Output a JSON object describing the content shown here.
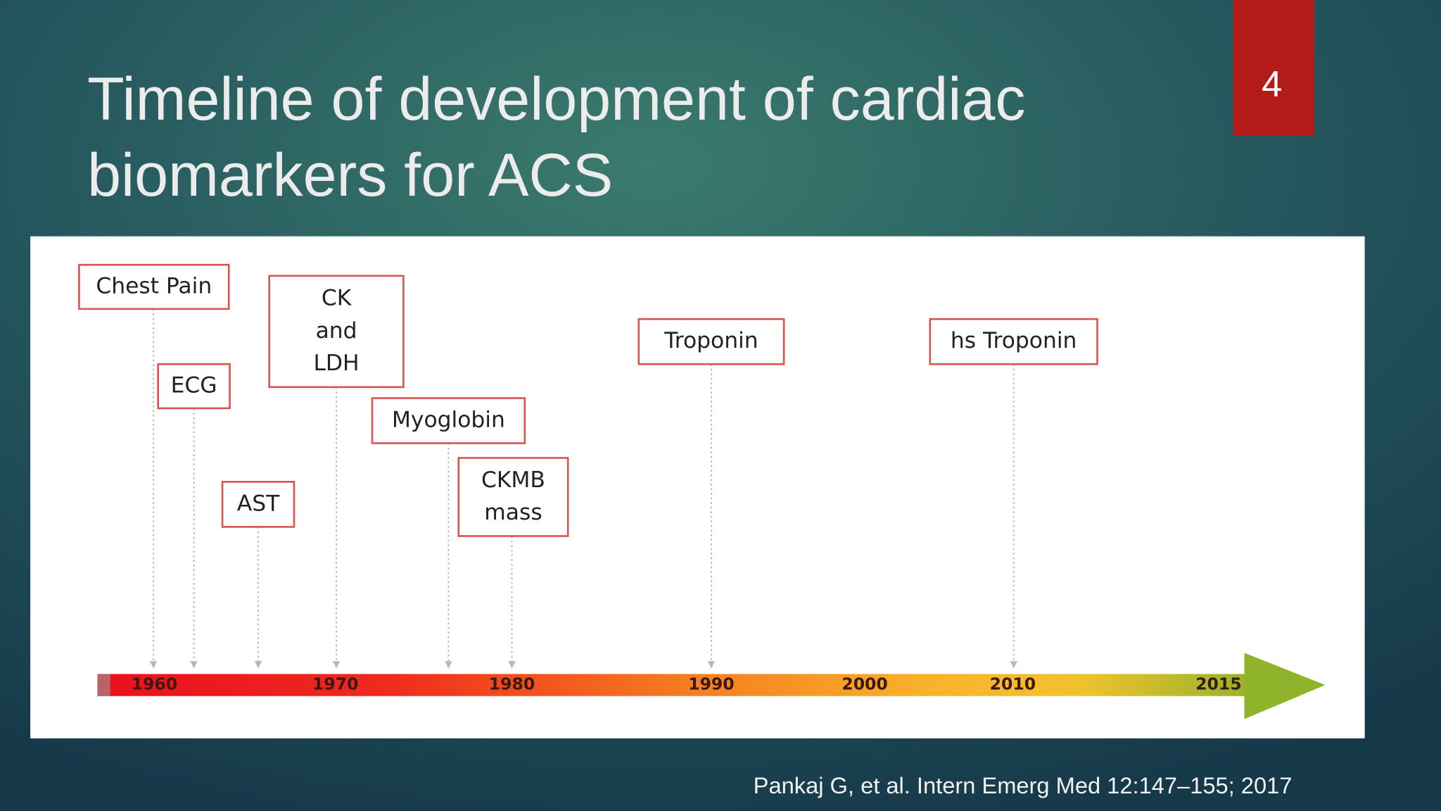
{
  "slide_number": "4",
  "title": [
    "Timeline of development of cardiac",
    "biomarkers for ACS"
  ],
  "timeline": {
    "years": [
      "1960",
      "1970",
      "1980",
      "1990",
      "2000",
      "2010",
      "2015"
    ],
    "events": [
      {
        "lines": [
          "Chest Pain"
        ]
      },
      {
        "lines": [
          "ECG"
        ]
      },
      {
        "lines": [
          "AST"
        ]
      },
      {
        "lines": [
          "CK",
          "and",
          "LDH"
        ]
      },
      {
        "lines": [
          "Myoglobin"
        ]
      },
      {
        "lines": [
          "CKMB",
          "mass"
        ]
      },
      {
        "lines": [
          "Troponin"
        ]
      },
      {
        "lines": [
          "hs Troponin"
        ]
      }
    ]
  },
  "citation": "Pankaj G, et al. Intern Emerg Med 12:147–155; 2017"
}
